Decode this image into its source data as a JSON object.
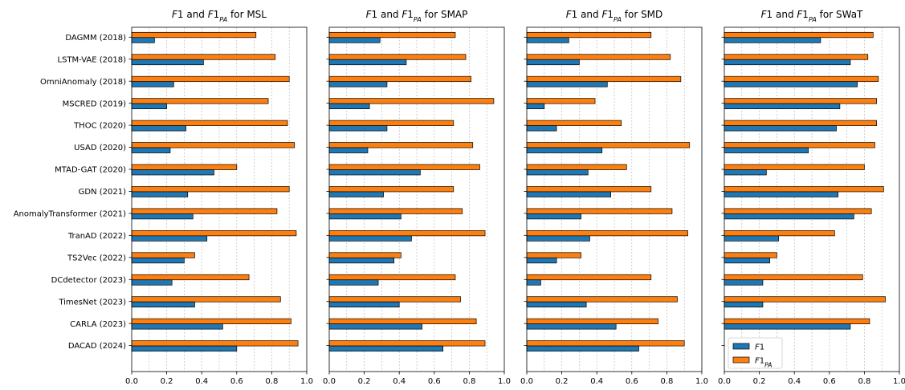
{
  "colors": {
    "f1": "#1f77b4",
    "f1pa": "#ff7f0e",
    "edge": "#000000",
    "grid": "#b0b0b0"
  },
  "legend": {
    "f1": "F1",
    "f1pa": "F1_PA",
    "location": "lower-left of last panel"
  },
  "chart_data": [
    {
      "type": "bar",
      "orientation": "horizontal",
      "title": "F1 and F1_PA for MSL",
      "xlim": [
        0,
        1.0
      ],
      "xticks": [
        "0.0",
        "0.2",
        "0.4",
        "0.6",
        "0.8",
        "1.0"
      ],
      "grid": "x, dashed",
      "categories": [
        "DAGMM (2018)",
        "LSTM-VAE (2018)",
        "OmniAnomaly (2018)",
        "MSCRED (2019)",
        "THOC (2020)",
        "USAD (2020)",
        "MTAD-GAT (2020)",
        "GDN (2021)",
        "AnomalyTransformer (2021)",
        "TranAD (2022)",
        "TS2Vec (2022)",
        "DCdetector (2023)",
        "TimesNet (2023)",
        "CARLA (2023)",
        "DACAD (2024)"
      ],
      "series": [
        {
          "name": "F1",
          "values": [
            0.13,
            0.41,
            0.24,
            0.2,
            0.31,
            0.22,
            0.47,
            0.32,
            0.35,
            0.43,
            0.3,
            0.23,
            0.36,
            0.52,
            0.6
          ]
        },
        {
          "name": "F1_PA",
          "values": [
            0.71,
            0.82,
            0.9,
            0.78,
            0.89,
            0.93,
            0.6,
            0.9,
            0.83,
            0.94,
            0.36,
            0.67,
            0.85,
            0.91,
            0.95
          ]
        }
      ]
    },
    {
      "type": "bar",
      "orientation": "horizontal",
      "title": "F1 and F1_PA for SMAP",
      "xlim": [
        0,
        1.0
      ],
      "xticks": [
        "0.0",
        "0.2",
        "0.4",
        "0.6",
        "0.8",
        "1.0"
      ],
      "grid": "x, dashed",
      "categories": [
        "DAGMM (2018)",
        "LSTM-VAE (2018)",
        "OmniAnomaly (2018)",
        "MSCRED (2019)",
        "THOC (2020)",
        "USAD (2020)",
        "MTAD-GAT (2020)",
        "GDN (2021)",
        "AnomalyTransformer (2021)",
        "TranAD (2022)",
        "TS2Vec (2022)",
        "DCdetector (2023)",
        "TimesNet (2023)",
        "CARLA (2023)",
        "DACAD (2024)"
      ],
      "series": [
        {
          "name": "F1",
          "values": [
            0.29,
            0.44,
            0.33,
            0.23,
            0.33,
            0.22,
            0.52,
            0.31,
            0.41,
            0.47,
            0.37,
            0.28,
            0.4,
            0.53,
            0.65
          ]
        },
        {
          "name": "F1_PA",
          "values": [
            0.72,
            0.78,
            0.81,
            0.94,
            0.71,
            0.82,
            0.86,
            0.71,
            0.76,
            0.89,
            0.41,
            0.72,
            0.75,
            0.84,
            0.89
          ]
        }
      ]
    },
    {
      "type": "bar",
      "orientation": "horizontal",
      "title": "F1 and F1_PA for SMD",
      "xlim": [
        0,
        1.0
      ],
      "xticks": [
        "0.0",
        "0.2",
        "0.4",
        "0.6",
        "0.8",
        "1.0"
      ],
      "grid": "x, dashed",
      "categories": [
        "DAGMM (2018)",
        "LSTM-VAE (2018)",
        "OmniAnomaly (2018)",
        "MSCRED (2019)",
        "THOC (2020)",
        "USAD (2020)",
        "MTAD-GAT (2020)",
        "GDN (2021)",
        "AnomalyTransformer (2021)",
        "TranAD (2022)",
        "TS2Vec (2022)",
        "DCdetector (2023)",
        "TimesNet (2023)",
        "CARLA (2023)",
        "DACAD (2024)"
      ],
      "series": [
        {
          "name": "F1",
          "values": [
            0.24,
            0.3,
            0.46,
            0.1,
            0.17,
            0.43,
            0.35,
            0.48,
            0.31,
            0.36,
            0.17,
            0.08,
            0.34,
            0.51,
            0.64
          ]
        },
        {
          "name": "F1_PA",
          "values": [
            0.71,
            0.82,
            0.88,
            0.39,
            0.54,
            0.93,
            0.57,
            0.71,
            0.83,
            0.92,
            0.31,
            0.71,
            0.86,
            0.75,
            0.9
          ]
        }
      ]
    },
    {
      "type": "bar",
      "orientation": "horizontal",
      "title": "F1 and F1_PA for SWaT",
      "xlim": [
        0,
        1.0
      ],
      "xticks": [
        "0.0",
        "0.2",
        "0.4",
        "0.6",
        "0.8",
        "1.0"
      ],
      "grid": "x, dashed",
      "categories": [
        "DAGMM (2018)",
        "LSTM-VAE (2018)",
        "OmniAnomaly (2018)",
        "MSCRED (2019)",
        "THOC (2020)",
        "USAD (2020)",
        "MTAD-GAT (2020)",
        "GDN (2021)",
        "AnomalyTransformer (2021)",
        "TranAD (2022)",
        "TS2Vec (2022)",
        "DCdetector (2023)",
        "TimesNet (2023)",
        "CARLA (2023)",
        "DACAD (2024)"
      ],
      "series": [
        {
          "name": "F1",
          "values": [
            0.55,
            0.72,
            0.76,
            0.66,
            0.64,
            0.48,
            0.24,
            0.65,
            0.74,
            0.31,
            0.26,
            0.22,
            0.22,
            0.72,
            0.0
          ]
        },
        {
          "name": "F1_PA",
          "values": [
            0.85,
            0.82,
            0.88,
            0.87,
            0.87,
            0.86,
            0.8,
            0.91,
            0.84,
            0.63,
            0.3,
            0.79,
            0.92,
            0.83,
            0.0
          ]
        }
      ]
    }
  ]
}
